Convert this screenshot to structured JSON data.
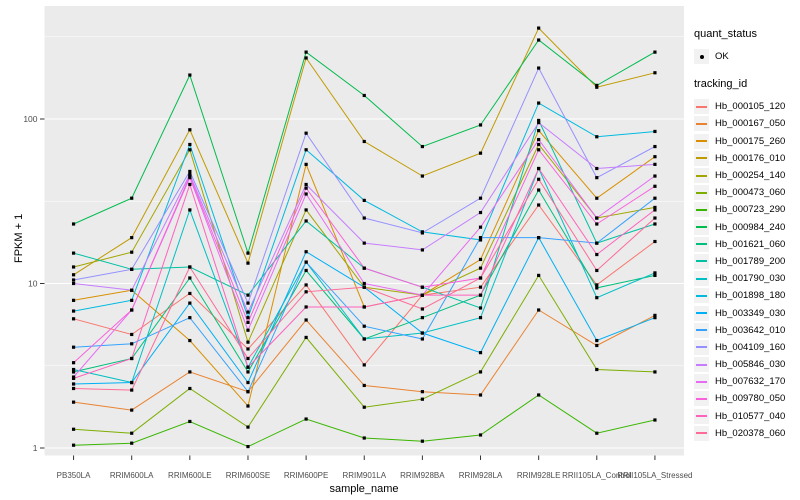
{
  "figure": {
    "background": "#FFFFFF",
    "panel_background": "#EBEBEB",
    "grid_color": "#FFFFFF",
    "tick_color": "#333333",
    "tick_label_color": "#4D4D4D",
    "point_color": "#000000",
    "legend_key_background": "#F2F2F2"
  },
  "axes": {
    "x_title": "sample_name",
    "y_title": "FPKM + 1",
    "y_tick_labels": [
      "1",
      "10",
      "100"
    ]
  },
  "legend": {
    "quant_status": {
      "title": "quant_status",
      "items": [
        {
          "label": "OK",
          "marker": "black-point"
        }
      ]
    },
    "tracking_id": {
      "title": "tracking_id"
    }
  },
  "chart_data": {
    "type": "line",
    "title": "",
    "xlabel": "sample_name",
    "ylabel": "FPKM + 1",
    "y_scale": "log10",
    "ylim": [
      0.9,
      490
    ],
    "y_major_ticks": [
      1,
      10,
      100
    ],
    "y_minor_ticks": [
      3.162,
      31.62,
      316.2
    ],
    "grid": true,
    "legend_position": "right",
    "point_marker": "small black square (quant_status = OK)",
    "categories": [
      "PB350LA",
      "RRIM600LA",
      "RRIM600LE",
      "RRIM600SE",
      "RRIM600PE",
      "RRIM901LA",
      "RRIM928BA",
      "RRIM928LA",
      "RRIM928LE",
      "RRII105LA_Control",
      "RRII105LA_Stressed"
    ],
    "series": [
      {
        "name": "Hb_000105_120",
        "color": "#F8766D",
        "values": [
          6.1,
          4.9,
          8.7,
          4.0,
          9.8,
          3.2,
          8.5,
          9.5,
          30,
          9.8,
          18
        ]
      },
      {
        "name": "Hb_000167_050",
        "color": "#EA8331",
        "values": [
          1.9,
          1.7,
          2.9,
          2.2,
          6.0,
          2.4,
          2.2,
          2.1,
          6.9,
          4.2,
          6.4
        ]
      },
      {
        "name": "Hb_000175_260",
        "color": "#D89000",
        "values": [
          7.9,
          9.1,
          4.5,
          1.8,
          53,
          7.2,
          8.5,
          14,
          85,
          33,
          59
        ]
      },
      {
        "name": "Hb_000176_010",
        "color": "#C09B00",
        "values": [
          11.3,
          19,
          86,
          13.3,
          235,
          73,
          45,
          62,
          357,
          156,
          191
        ]
      },
      {
        "name": "Hb_000254_140",
        "color": "#A3A500",
        "values": [
          12.6,
          15.5,
          65,
          4.4,
          28,
          9.5,
          8.5,
          12.4,
          70,
          25,
          29
        ]
      },
      {
        "name": "Hb_000473_060",
        "color": "#7CAE00",
        "values": [
          1.3,
          1.23,
          2.3,
          1.34,
          4.7,
          1.77,
          1.98,
          2.9,
          11.2,
          3.0,
          2.9
        ]
      },
      {
        "name": "Hb_000723_290",
        "color": "#39B600",
        "values": [
          1.04,
          1.07,
          1.45,
          1.02,
          1.5,
          1.15,
          1.1,
          1.2,
          2.1,
          1.23,
          1.48
        ]
      },
      {
        "name": "Hb_000984_240",
        "color": "#00BB4E",
        "values": [
          23,
          33,
          185,
          15.3,
          255,
          139,
          68,
          92,
          302,
          160,
          255
        ]
      },
      {
        "name": "Hb_001621_060",
        "color": "#00BF7D",
        "values": [
          2.9,
          3.5,
          10.8,
          2.9,
          12,
          4.6,
          6.2,
          8.5,
          37,
          9.4,
          11.2
        ]
      },
      {
        "name": "Hb_001789_200",
        "color": "#00C1A3",
        "values": [
          15.3,
          12.2,
          12.6,
          8.5,
          24,
          12.4,
          9.5,
          7.1,
          98,
          17.6,
          23
        ]
      },
      {
        "name": "Hb_001790_030",
        "color": "#00BFC4",
        "values": [
          3.0,
          2.5,
          28,
          3.1,
          13.5,
          4.6,
          5.0,
          6.2,
          50,
          8.2,
          11.6
        ]
      },
      {
        "name": "Hb_001898_180",
        "color": "#00BAE0",
        "values": [
          6.8,
          7.9,
          70,
          6.2,
          65,
          32,
          20.6,
          18.4,
          125,
          78,
          84
        ]
      },
      {
        "name": "Hb_003349_030",
        "color": "#00B0F6",
        "values": [
          2.45,
          2.5,
          7.6,
          2.5,
          15.6,
          9.5,
          5.0,
          3.8,
          19,
          4.5,
          6.2
        ]
      },
      {
        "name": "Hb_003642_010",
        "color": "#35A2FF",
        "values": [
          4.1,
          4.3,
          6.2,
          2.2,
          13.5,
          5.5,
          4.6,
          19,
          19,
          17.6,
          33
        ]
      },
      {
        "name": "Hb_004109_160",
        "color": "#9590FF",
        "values": [
          10.5,
          12.2,
          48,
          7.6,
          82,
          25,
          20.3,
          33,
          204,
          44,
          68
        ]
      },
      {
        "name": "Hb_005846_030",
        "color": "#C77CFF",
        "values": [
          10,
          9.1,
          46,
          6.7,
          40,
          17.6,
          16,
          27,
          95,
          50,
          53
        ]
      },
      {
        "name": "Hb_007632_170",
        "color": "#E76BF3",
        "values": [
          2.7,
          6.9,
          44,
          5.2,
          35,
          10,
          8.5,
          22,
          75,
          25,
          45
        ]
      },
      {
        "name": "Hb_009780_050",
        "color": "#FA62DB",
        "values": [
          3.3,
          6.9,
          45,
          5.8,
          38,
          12.4,
          9.5,
          10.8,
          65,
          23,
          39
        ]
      },
      {
        "name": "Hb_010577_040",
        "color": "#FF62BC",
        "values": [
          2.65,
          3.5,
          40,
          3.1,
          7.2,
          7.2,
          8.5,
          8.5,
          50,
          15,
          28
        ]
      },
      {
        "name": "Hb_020378_060",
        "color": "#FF6A98",
        "values": [
          2.3,
          2.25,
          12.6,
          3.5,
          8.9,
          9.5,
          7.0,
          10.8,
          43,
          12,
          25
        ]
      }
    ]
  }
}
